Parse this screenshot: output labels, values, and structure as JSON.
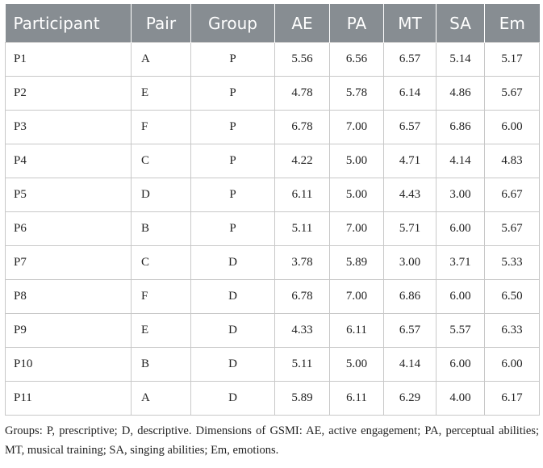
{
  "table": {
    "headers": [
      "Participant",
      "Pair",
      "Group",
      "AE",
      "PA",
      "MT",
      "SA",
      "Em"
    ],
    "rows": [
      [
        "P1",
        "A",
        "P",
        "5.56",
        "6.56",
        "6.57",
        "5.14",
        "5.17"
      ],
      [
        "P2",
        "E",
        "P",
        "4.78",
        "5.78",
        "6.14",
        "4.86",
        "5.67"
      ],
      [
        "P3",
        "F",
        "P",
        "6.78",
        "7.00",
        "6.57",
        "6.86",
        "6.00"
      ],
      [
        "P4",
        "C",
        "P",
        "4.22",
        "5.00",
        "4.71",
        "4.14",
        "4.83"
      ],
      [
        "P5",
        "D",
        "P",
        "6.11",
        "5.00",
        "4.43",
        "3.00",
        "6.67"
      ],
      [
        "P6",
        "B",
        "P",
        "5.11",
        "7.00",
        "5.71",
        "6.00",
        "5.67"
      ],
      [
        "P7",
        "C",
        "D",
        "3.78",
        "5.89",
        "3.00",
        "3.71",
        "5.33"
      ],
      [
        "P8",
        "F",
        "D",
        "6.78",
        "7.00",
        "6.86",
        "6.00",
        "6.50"
      ],
      [
        "P9",
        "E",
        "D",
        "4.33",
        "6.11",
        "6.57",
        "5.57",
        "6.33"
      ],
      [
        "P10",
        "B",
        "D",
        "5.11",
        "5.00",
        "4.14",
        "6.00",
        "6.00"
      ],
      [
        "P11",
        "A",
        "D",
        "5.89",
        "6.11",
        "6.29",
        "4.00",
        "6.17"
      ]
    ]
  },
  "footnote": "Groups: P, prescriptive; D, descriptive. Dimensions of GSMI: AE, active engagement; PA, perceptual abilities; MT, musical training; SA, singing abilities; Em, emotions."
}
